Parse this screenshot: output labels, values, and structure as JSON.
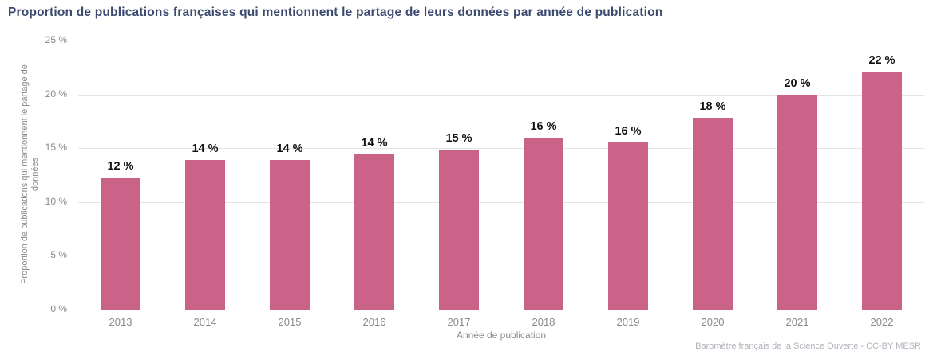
{
  "title": "Proportion de publications françaises qui mentionnent le partage de leurs données par année de publication",
  "footer": {
    "source_credit": "Baromètre français de la Science Ouverte - CC-BY MESR"
  },
  "colors": {
    "bar": "#cb6287",
    "title_text": "#3b4a6e",
    "axis_text": "#8a8a8a",
    "bar_label_text": "#111111",
    "gridline": "#e4e4e4",
    "baseline": "#c9d5de"
  },
  "chart_data": {
    "type": "bar",
    "title": "Proportion de publications françaises qui mentionnent le partage de leurs données par année de publication",
    "categories": [
      "2013",
      "2014",
      "2015",
      "2016",
      "2017",
      "2018",
      "2019",
      "2020",
      "2021",
      "2022"
    ],
    "values": [
      12.3,
      13.9,
      13.9,
      14.4,
      14.9,
      16.0,
      15.5,
      17.8,
      20.0,
      22.1
    ],
    "bar_labels": [
      "12 %",
      "14 %",
      "14 %",
      "14 %",
      "15 %",
      "16 %",
      "16 %",
      "18 %",
      "20 %",
      "22 %"
    ],
    "xlabel": "Année de publication",
    "ylabel": "Proportion de publications qui mentionnent le partage de données",
    "ylabel_line1": "Proportion de publications qui mentionnent le partage de",
    "ylabel_line2": "données",
    "y_ticks": [
      "0 %",
      "5 %",
      "10 %",
      "15 %",
      "20 %",
      "25 %"
    ],
    "y_tick_values": [
      0,
      5,
      10,
      15,
      20,
      25
    ],
    "ylim": [
      0,
      25
    ],
    "grid": true,
    "legend_position": "none",
    "source": "Baromètre français de la Science Ouverte - CC-BY MESR"
  }
}
